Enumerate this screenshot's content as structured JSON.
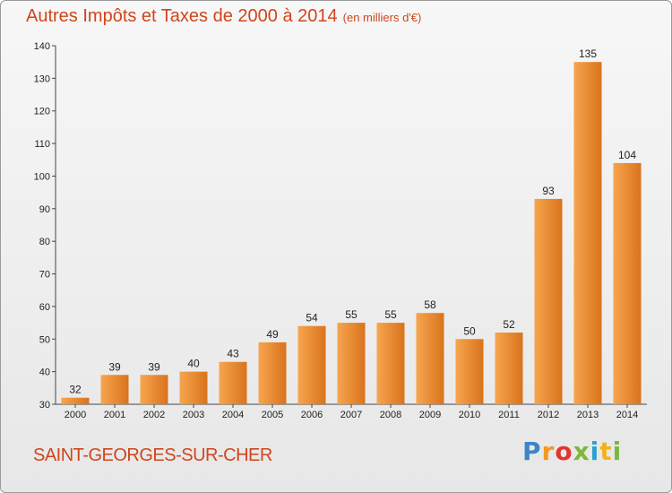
{
  "header": {
    "title": "Autres Impôts et Taxes de 2000 à 2014",
    "unit": "(en milliers d'€)"
  },
  "footer": {
    "commune": "SAINT-GEORGES-SUR-CHER",
    "logo": "Proxiti"
  },
  "colors": {
    "bar_light": "#f7a54f",
    "bar_dark": "#d9731c",
    "title": "#d0451b"
  },
  "chart_data": {
    "type": "bar",
    "title": "Autres Impôts et Taxes de 2000 à 2014",
    "subtitle": "(en milliers d'€)",
    "xlabel": "",
    "ylabel": "",
    "categories": [
      "2000",
      "2001",
      "2002",
      "2003",
      "2004",
      "2005",
      "2006",
      "2007",
      "2008",
      "2009",
      "2010",
      "2011",
      "2012",
      "2013",
      "2014"
    ],
    "values": [
      32,
      39,
      39,
      40,
      43,
      49,
      54,
      55,
      55,
      58,
      50,
      52,
      93,
      135,
      104
    ],
    "ylim": [
      30,
      140
    ],
    "yticks": [
      30,
      40,
      50,
      60,
      70,
      80,
      90,
      100,
      110,
      120,
      130,
      140
    ],
    "grid": false,
    "legend": "none"
  }
}
